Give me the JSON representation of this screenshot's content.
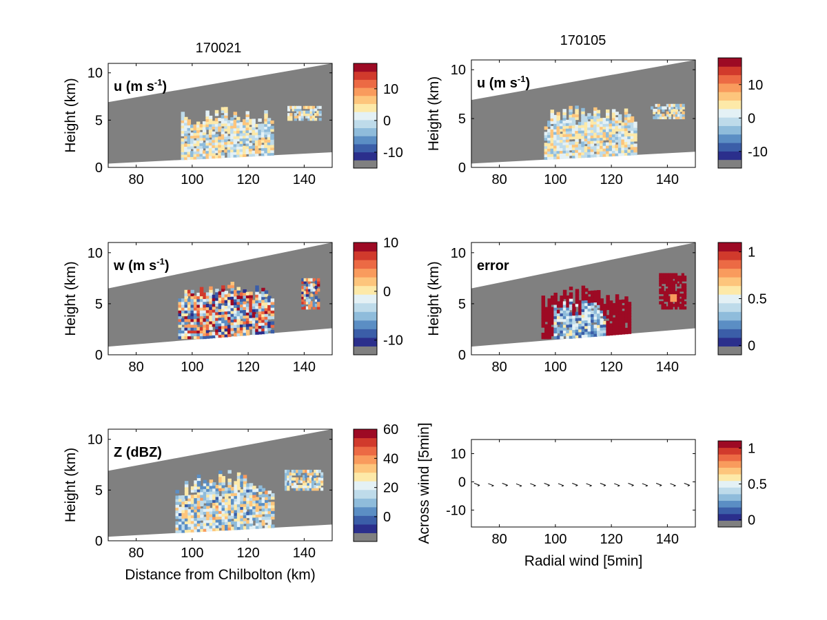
{
  "figure": {
    "col_titles": [
      "170021",
      "170105"
    ],
    "xlabel": "Distance from Chilbolton (km)",
    "ylabel": "Height (km)"
  },
  "colors": {
    "mask": "#808080",
    "ramp": [
      "#2b2f8c",
      "#3b5ea8",
      "#5b8ec4",
      "#8fbcdb",
      "#bedbea",
      "#e4f1f5",
      "#fde9a8",
      "#fdc57c",
      "#f99b5d",
      "#ec6a44",
      "#d13a2c",
      "#9d0a24"
    ]
  },
  "chart_data": [
    {
      "type": "heatmap",
      "panel": "u-170021",
      "label": "u (m s",
      "label_sup": "-1",
      "label_tail": ")",
      "xlim": [
        70,
        150
      ],
      "ylim": [
        0,
        11
      ],
      "xticks": [
        80,
        100,
        120,
        140
      ],
      "yticks": [
        0,
        5,
        10
      ],
      "xlabel": "",
      "ylabel": "Height (km)",
      "colorbar": {
        "ticks": [
          10,
          0,
          -10
        ],
        "range": [
          -15,
          18
        ]
      },
      "beam_lower_km": [
        0.4,
        1.6
      ],
      "beam_upper_km": [
        6.9,
        11.0
      ],
      "echo": "cloud",
      "cloud_extent_km": [
        96,
        128,
        0.8,
        6.5
      ],
      "echo_value_range": [
        -6,
        6
      ],
      "secondary_echo_km": [
        134,
        146,
        5.0,
        6.4
      ]
    },
    {
      "type": "heatmap",
      "panel": "u-170105",
      "label": "u (m s",
      "label_sup": "-1",
      "label_tail": ")",
      "xlim": [
        70,
        150
      ],
      "ylim": [
        0,
        11
      ],
      "xticks": [
        80,
        100,
        120,
        140
      ],
      "yticks": [
        0,
        5,
        10
      ],
      "xlabel": "",
      "ylabel": "Height (km)",
      "colorbar": {
        "ticks": [
          10,
          0,
          -10
        ],
        "range": [
          -15,
          18
        ]
      },
      "beam_lower_km": [
        0.4,
        1.6
      ],
      "beam_upper_km": [
        6.9,
        11.0
      ],
      "echo": "cloud",
      "cloud_extent_km": [
        96,
        128,
        0.8,
        6.5
      ],
      "echo_value_range": [
        -6,
        6
      ],
      "secondary_echo_km": [
        134,
        146,
        5.0,
        6.4
      ]
    },
    {
      "type": "heatmap",
      "panel": "w-170021",
      "label": "w (m s",
      "label_sup": "-1",
      "label_tail": ")",
      "xlim": [
        70,
        150
      ],
      "ylim": [
        0,
        11
      ],
      "xticks": [
        80,
        100,
        120,
        140
      ],
      "yticks": [
        0,
        5,
        10
      ],
      "xlabel": "",
      "ylabel": "Height (km)",
      "colorbar": {
        "ticks": [
          10,
          0,
          -10
        ],
        "range": [
          -13,
          10
        ]
      },
      "beam_lower_km": [
        0.8,
        2.6
      ],
      "beam_upper_km": [
        6.5,
        11.0
      ],
      "echo": "cloud",
      "cloud_extent_km": [
        95,
        129,
        1.6,
        7.3
      ],
      "echo_value_range": [
        -12,
        10
      ],
      "secondary_echo_km": [
        139,
        145,
        4.5,
        7.4
      ]
    },
    {
      "type": "heatmap",
      "panel": "error-170105",
      "label": "error",
      "label_sup": "",
      "label_tail": "",
      "xlim": [
        70,
        150
      ],
      "ylim": [
        0,
        11
      ],
      "xticks": [
        80,
        100,
        120,
        140
      ],
      "yticks": [
        0,
        5,
        10
      ],
      "xlabel": "",
      "ylabel": "Height (km)",
      "colorbar": {
        "ticks": [
          1,
          0.5,
          0
        ],
        "range": [
          -0.1,
          1.1
        ]
      },
      "beam_lower_km": [
        0.8,
        2.6
      ],
      "beam_upper_km": [
        6.5,
        11.0
      ],
      "echo": "error",
      "cloud_extent_km": [
        95,
        126,
        1.6,
        6.8
      ],
      "echo_value_range": [
        0,
        1
      ],
      "secondary_echo_km": [
        137,
        146,
        4.5,
        7.8
      ]
    },
    {
      "type": "heatmap",
      "panel": "Z-170021",
      "label": "Z (dBZ)",
      "label_sup": "",
      "label_tail": "",
      "xlim": [
        70,
        150
      ],
      "ylim": [
        0,
        11
      ],
      "xticks": [
        80,
        100,
        120,
        140
      ],
      "yticks": [
        0,
        5,
        10
      ],
      "xlabel": "Distance from Chilbolton (km)",
      "ylabel": "Height (km)",
      "colorbar": {
        "ticks": [
          60,
          40,
          20,
          0
        ],
        "range": [
          -17,
          60
        ]
      },
      "beam_lower_km": [
        0.4,
        1.6
      ],
      "beam_upper_km": [
        6.9,
        11.0
      ],
      "echo": "cloud",
      "cloud_extent_km": [
        94,
        129,
        0.8,
        6.8
      ],
      "echo_value_range": [
        -5,
        35
      ],
      "secondary_echo_km": [
        133,
        146,
        5.0,
        6.8
      ]
    },
    {
      "type": "scatter",
      "panel": "wind-quiver",
      "xlim": [
        70,
        150
      ],
      "ylim": [
        -16,
        15
      ],
      "xticks": [
        80,
        100,
        120,
        140
      ],
      "yticks": [
        10,
        0,
        -10
      ],
      "xlabel": "Radial wind [5min]",
      "ylabel": "Across wind [5min]",
      "colorbar": {
        "ticks": [
          1,
          0.5,
          0
        ],
        "range": [
          -0.1,
          1.1
        ]
      },
      "arrows_x_km": [
        71,
        76,
        81,
        86,
        91,
        96,
        101,
        106,
        111,
        116,
        121,
        126,
        131,
        136,
        141,
        146
      ],
      "arrows_y": [
        -0.5,
        -0.6,
        -0.5,
        -0.7,
        -0.6,
        -0.5,
        -0.6,
        -0.5,
        -0.6,
        -0.5,
        -0.6,
        -0.5,
        -0.6,
        -0.5,
        -0.6,
        -0.5
      ]
    }
  ]
}
